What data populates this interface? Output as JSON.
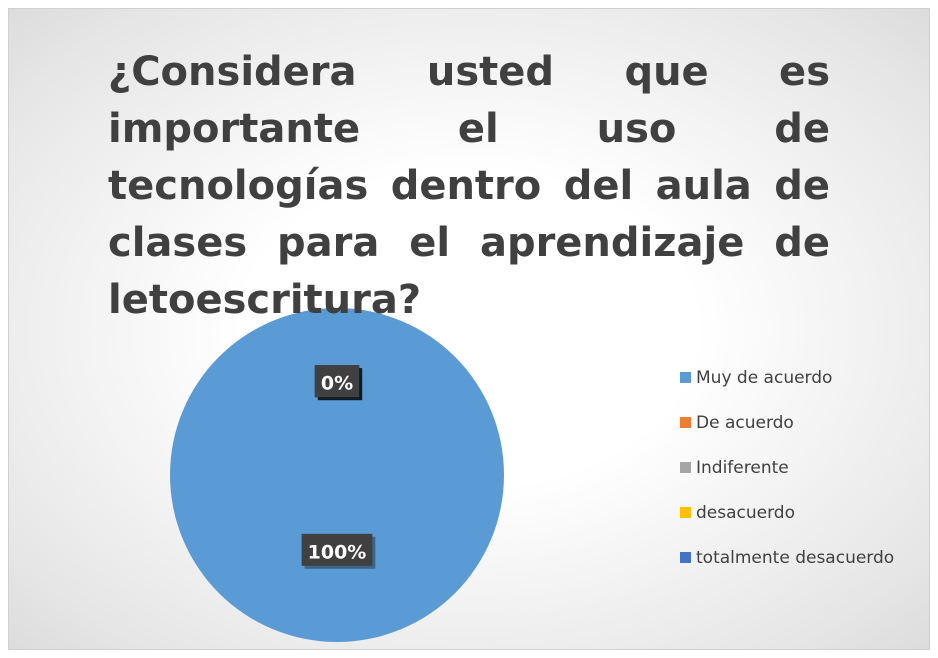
{
  "chart_data": {
    "type": "pie",
    "title": "¿Considera usted que es importante el uso de tecnologías dentro del aula de clases para el aprendizaje de letoescritura?",
    "categories": [
      "Muy de acuerdo",
      "De acuerdo",
      "Indiferente",
      "desacuerdo",
      "totalmente desacuerdo"
    ],
    "values": [
      100,
      0,
      0,
      0,
      0
    ],
    "value_labels": [
      "100%",
      "0%",
      "0%",
      "0%",
      "0%"
    ],
    "colors": [
      "#5b9bd5",
      "#ed7d31",
      "#a5a5a5",
      "#ffc000",
      "#4472c4"
    ],
    "legend": "right"
  }
}
